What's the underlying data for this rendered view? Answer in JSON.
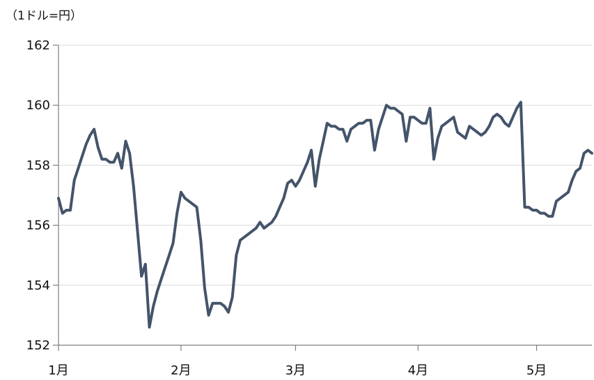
{
  "chart_data": {
    "type": "line",
    "unit_label": "（1ドル=円）",
    "ylim": [
      152,
      162
    ],
    "y_ticks": [
      152,
      154,
      156,
      158,
      160,
      162
    ],
    "y_tick_labels": [
      "152",
      "154",
      "156",
      "158",
      "160",
      "162"
    ],
    "grid": true,
    "x_tick_labels": [
      "1月",
      "2月",
      "3月",
      "4月",
      "5月"
    ],
    "x_tick_positions": [
      0,
      31,
      60,
      91,
      121
    ],
    "xlim": [
      0,
      135
    ],
    "series": [
      {
        "color": "#44546a",
        "x": [
          0,
          1,
          2,
          3,
          4,
          5,
          6,
          7,
          8,
          9,
          10,
          11,
          12,
          13,
          14,
          15,
          16,
          17,
          18,
          19,
          20,
          21,
          22,
          23,
          24,
          25,
          26,
          27,
          28,
          29,
          30,
          31,
          32,
          33,
          34,
          35,
          36,
          37,
          38,
          39,
          40,
          41,
          42,
          43,
          44,
          45,
          46,
          47,
          48,
          49,
          50,
          51,
          52,
          53,
          54,
          55,
          56,
          57,
          58,
          59,
          60,
          61,
          62,
          63,
          64,
          65,
          66,
          67,
          68,
          69,
          70,
          71,
          72,
          73,
          74,
          75,
          76,
          77,
          78,
          79,
          80,
          81,
          82,
          83,
          84,
          85,
          86,
          87,
          88,
          89,
          90,
          91,
          92,
          93,
          94,
          95,
          96,
          97,
          98,
          99,
          100,
          101,
          102,
          103,
          104,
          105,
          106,
          107,
          108,
          109,
          110,
          111,
          112,
          113,
          114,
          115,
          116,
          117,
          118,
          119,
          120,
          121,
          122,
          123,
          124,
          125,
          126,
          127,
          128,
          129,
          130,
          131,
          132,
          133,
          134,
          135
        ],
        "values": [
          156.9,
          156.4,
          156.5,
          156.5,
          157.5,
          157.9,
          158.3,
          158.7,
          159.0,
          159.2,
          158.6,
          158.2,
          158.2,
          158.1,
          158.1,
          158.4,
          157.9,
          158.8,
          158.4,
          157.3,
          155.8,
          154.3,
          154.7,
          152.6,
          153.3,
          153.8,
          154.2,
          154.6,
          155.0,
          155.4,
          156.4,
          157.1,
          156.9,
          156.8,
          156.7,
          156.6,
          155.5,
          153.9,
          153.0,
          153.4,
          153.4,
          153.4,
          153.3,
          153.1,
          153.6,
          155.0,
          155.5,
          155.6,
          155.7,
          155.8,
          155.9,
          156.1,
          155.9,
          156.0,
          156.1,
          156.3,
          156.6,
          156.9,
          157.4,
          157.5,
          157.3,
          157.5,
          157.8,
          158.1,
          158.5,
          157.3,
          158.2,
          158.8,
          159.4,
          159.3,
          159.3,
          159.2,
          159.2,
          158.8,
          159.2,
          159.3,
          159.4,
          159.4,
          159.5,
          159.5,
          158.5,
          159.2,
          159.6,
          160.0,
          159.9,
          159.9,
          159.8,
          159.7,
          158.8,
          159.6,
          159.6,
          159.5,
          159.4,
          159.4,
          159.9,
          158.2,
          158.9,
          159.3,
          159.4,
          159.5,
          159.6,
          159.1,
          159.0,
          158.9,
          159.3,
          159.2,
          159.1,
          159.0,
          159.1,
          159.3,
          159.6,
          159.7,
          159.6,
          159.4,
          159.3,
          159.6,
          159.9,
          160.1,
          156.6,
          156.6,
          156.5,
          156.5,
          156.4,
          156.4,
          156.3,
          156.3,
          156.8,
          156.9,
          157.0,
          157.1,
          157.5,
          157.8,
          157.9,
          158.4,
          158.5,
          158.4
        ]
      }
    ]
  }
}
